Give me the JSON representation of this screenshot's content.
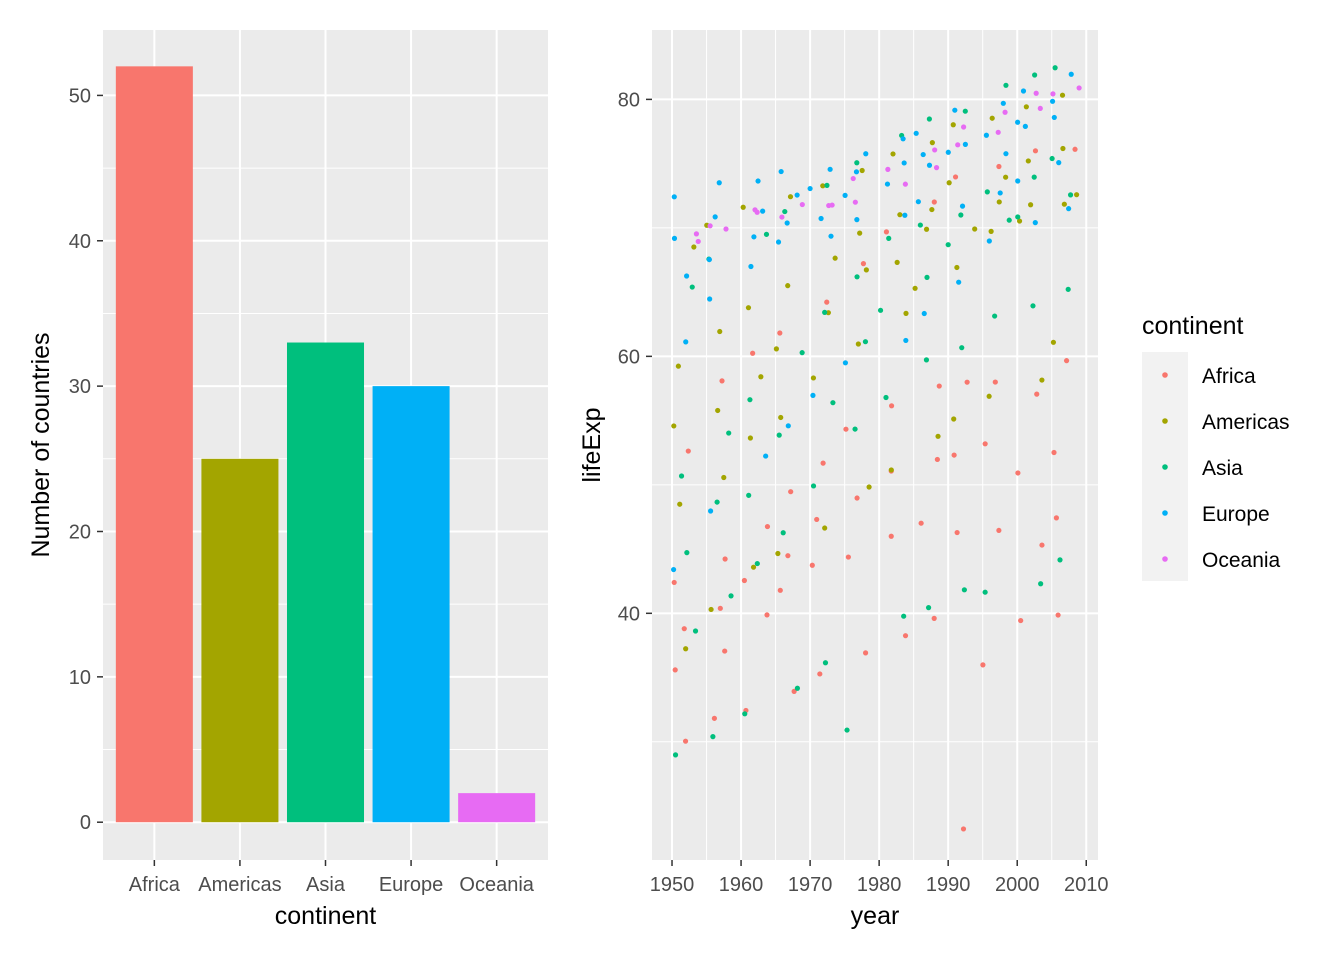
{
  "colors": {
    "Africa": "#F8766D",
    "Americas": "#A3A500",
    "Asia": "#00BF7D",
    "Europe": "#00B0F6",
    "Oceania": "#E76BF3",
    "panel": "#EBEBEB",
    "grid": "#FFFFFF"
  },
  "chart_data": [
    {
      "type": "bar",
      "categories": [
        "Africa",
        "Americas",
        "Asia",
        "Europe",
        "Oceania"
      ],
      "values": [
        52,
        25,
        33,
        30,
        2
      ],
      "xlabel": "continent",
      "ylabel": "Number of countries",
      "ylim": [
        -2.6,
        54.5
      ],
      "yticks": [
        0,
        10,
        20,
        30,
        40,
        50
      ],
      "grid": true,
      "legend": "none"
    },
    {
      "type": "scatter",
      "xlabel": "year",
      "ylabel": "lifeExp",
      "xlim": [
        1947.1,
        2011.7
      ],
      "ylim": [
        20.8,
        85.4
      ],
      "xticks": [
        1950,
        1960,
        1970,
        1980,
        1990,
        2000,
        2010
      ],
      "yticks": [
        40,
        60,
        80
      ],
      "grid": true,
      "jitter": true,
      "legend": {
        "title": "continent",
        "placement": "right",
        "entries": [
          "Africa",
          "Americas",
          "Asia",
          "Europe",
          "Oceania"
        ]
      },
      "years": [
        1952,
        1957,
        1962,
        1967,
        1972,
        1977,
        1982,
        1987,
        1992,
        1997,
        2002,
        2007
      ],
      "series": [
        {
          "name": "Africa",
          "lifeExp": [
            [
              30.0,
              35.8,
              38.8,
              42.1,
              52.7
            ],
            [
              31.6,
              37.4,
              40.6,
              44.5,
              58.1
            ],
            [
              32.8,
              39.5,
              42.6,
              47.0,
              60.2
            ],
            [
              34.1,
              41.4,
              44.7,
              49.6,
              61.6
            ],
            [
              35.4,
              43.4,
              47.0,
              51.9,
              64.3
            ],
            [
              36.8,
              44.6,
              49.3,
              54.4,
              67.1
            ],
            [
              38.4,
              46.0,
              50.8,
              56.2,
              69.9
            ],
            [
              39.9,
              46.8,
              51.6,
              57.4,
              71.9
            ],
            [
              23.6,
              46.4,
              52.4,
              57.8,
              73.6
            ],
            [
              36.1,
              46.5,
              52.8,
              57.7,
              74.8
            ],
            [
              39.2,
              45.5,
              51.2,
              56.9,
              75.7
            ],
            [
              39.6,
              47.8,
              52.9,
              59.4,
              76.4
            ]
          ]
        },
        {
          "name": "Americas",
          "lifeExp": [
            [
              37.6,
              48.5,
              54.7,
              59.4,
              68.8
            ],
            [
              40.7,
              50.9,
              56.1,
              62.0,
              70.0
            ],
            [
              43.4,
              53.3,
              58.3,
              63.9,
              71.3
            ],
            [
              45.0,
              55.4,
              60.5,
              65.6,
              72.1
            ],
            [
              46.7,
              58.0,
              63.4,
              67.5,
              72.9
            ],
            [
              49.9,
              60.8,
              66.4,
              69.2,
              74.2
            ],
            [
              51.5,
              63.3,
              67.4,
              70.8,
              75.8
            ],
            [
              53.6,
              65.4,
              69.5,
              71.7,
              76.9
            ],
            [
              55.1,
              67.3,
              69.9,
              73.6,
              77.9
            ],
            [
              56.7,
              69.4,
              72.1,
              74.2,
              78.6
            ],
            [
              58.1,
              70.8,
              72.0,
              75.2,
              79.8
            ],
            [
              60.9,
              71.8,
              72.9,
              76.4,
              80.7
            ]
          ]
        },
        {
          "name": "Asia",
          "lifeExp": [
            [
              28.8,
              39.0,
              44.9,
              50.9,
              65.4
            ],
            [
              30.3,
              41.0,
              48.3,
              54.1,
              67.8
            ],
            [
              32.0,
              43.5,
              49.3,
              56.9,
              69.4
            ],
            [
              34.0,
              46.2,
              53.7,
              60.2,
              71.4
            ],
            [
              36.1,
              50.0,
              56.2,
              63.4,
              73.4
            ],
            [
              31.2,
              54.0,
              60.8,
              65.9,
              75.4
            ],
            [
              39.9,
              57.0,
              63.7,
              68.8,
              77.1
            ],
            [
              40.8,
              60.0,
              66.3,
              70.2,
              78.7
            ],
            [
              41.7,
              61.0,
              68.7,
              71.4,
              79.4
            ],
            [
              41.8,
              63.0,
              70.3,
              73.2,
              80.7
            ],
            [
              42.1,
              63.6,
              71.0,
              74.3,
              82.0
            ],
            [
              43.8,
              65.5,
              72.4,
              75.6,
              82.6
            ]
          ]
        },
        {
          "name": "Europe",
          "lifeExp": [
            [
              43.6,
              61.1,
              65.9,
              69.3,
              72.7
            ],
            [
              48.1,
              64.6,
              67.6,
              70.6,
              73.5
            ],
            [
              52.1,
              66.8,
              69.5,
              71.5,
              73.7
            ],
            [
              54.3,
              68.9,
              70.6,
              72.4,
              74.2
            ],
            [
              57.0,
              69.7,
              70.9,
              73.1,
              74.7
            ],
            [
              59.5,
              70.6,
              72.3,
              74.2,
              76.1
            ],
            [
              61.0,
              71.2,
              73.5,
              74.9,
              77.0
            ],
            [
              63.1,
              71.8,
              74.8,
              75.6,
              77.4
            ],
            [
              66.1,
              71.9,
              75.5,
              76.7,
              78.8
            ],
            [
              68.8,
              72.8,
              76.1,
              77.6,
              79.4
            ],
            [
              70.8,
              73.9,
              77.5,
              78.6,
              80.6
            ],
            [
              71.8,
              75.1,
              78.6,
              79.8,
              81.8
            ]
          ]
        },
        {
          "name": "Oceania",
          "lifeExp": [
            [
              69.1,
              69.4
            ],
            [
              70.3,
              70.3
            ],
            [
              71.2,
              71.0
            ],
            [
              71.5,
              71.1
            ],
            [
              71.9,
              71.9
            ],
            [
              72.2,
              73.5
            ],
            [
              73.8,
              74.7
            ],
            [
              74.3,
              76.3
            ],
            [
              76.3,
              77.6
            ],
            [
              77.6,
              78.8
            ],
            [
              79.1,
              80.4
            ],
            [
              80.2,
              81.2
            ]
          ]
        }
      ]
    }
  ]
}
